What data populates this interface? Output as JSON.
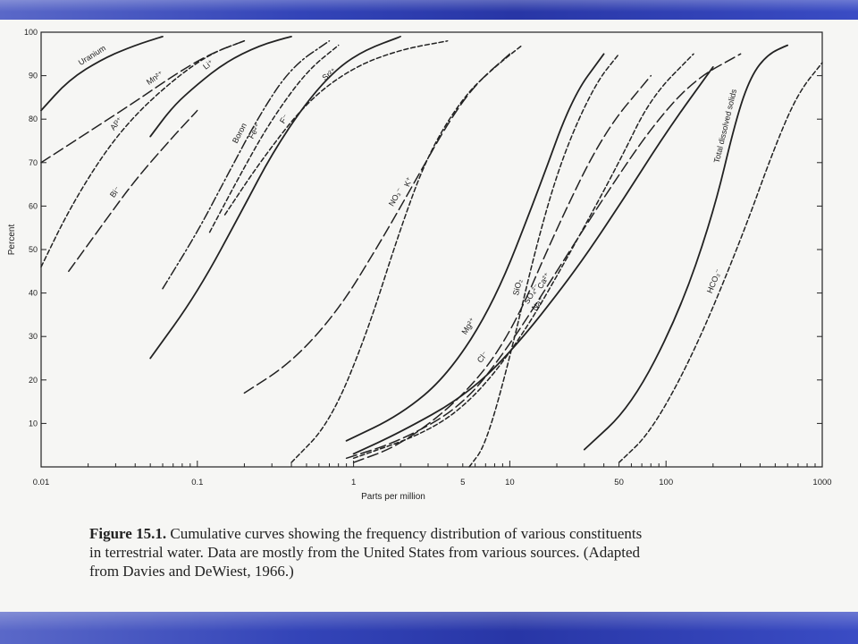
{
  "caption": {
    "figure_label": "Figure 15.1.",
    "line1": "Cumulative curves showing the frequency distribution of various constituents",
    "line2": "in terrestrial water. Data are mostly from the United States from various sources. (Adapted",
    "line3": "from Davies and DeWiest, 1966.)"
  },
  "colors": {
    "band": "#2f3eae",
    "ink": "#222222",
    "paper": "#f6f6f4"
  },
  "chart_data": {
    "type": "line",
    "xlabel": "Parts per million",
    "ylabel": "Percent",
    "x_scale": "log",
    "xlim": [
      0.01,
      1000
    ],
    "ylim": [
      0,
      100
    ],
    "x_ticks": [
      {
        "value": 0.01,
        "label": "0.01"
      },
      {
        "value": 0.1,
        "label": "0.1"
      },
      {
        "value": 1,
        "label": "1"
      },
      {
        "value": 5,
        "label": "5"
      },
      {
        "value": 10,
        "label": "10"
      },
      {
        "value": 50,
        "label": "50"
      },
      {
        "value": 100,
        "label": "100"
      },
      {
        "value": 1000,
        "label": "1000"
      }
    ],
    "y_ticks": [
      {
        "value": 10,
        "label": "10"
      },
      {
        "value": 20,
        "label": "20"
      },
      {
        "value": 30,
        "label": "30"
      },
      {
        "value": 40,
        "label": "40"
      },
      {
        "value": 50,
        "label": "50"
      },
      {
        "value": 60,
        "label": "60"
      },
      {
        "value": 70,
        "label": "70"
      },
      {
        "value": 80,
        "label": "80"
      },
      {
        "value": 90,
        "label": "90"
      },
      {
        "value": 100,
        "label": "100"
      }
    ],
    "series": [
      {
        "name": "Uranium",
        "style": "solid",
        "x": [
          0.01,
          0.015,
          0.025,
          0.04,
          0.06
        ],
        "y": [
          82,
          89,
          94,
          97,
          99
        ]
      },
      {
        "name": "Mn²⁺",
        "style": "longdash",
        "x": [
          0.01,
          0.02,
          0.04,
          0.07,
          0.12,
          0.2
        ],
        "y": [
          70,
          77,
          84,
          90,
          95,
          98
        ]
      },
      {
        "name": "Al³⁺",
        "style": "dash",
        "x": [
          0.01,
          0.015,
          0.025,
          0.04,
          0.07,
          0.12,
          0.2
        ],
        "y": [
          46,
          59,
          72,
          81,
          89,
          95,
          98
        ]
      },
      {
        "name": "Li⁺",
        "style": "solid",
        "x": [
          0.05,
          0.07,
          0.1,
          0.15,
          0.25,
          0.4
        ],
        "y": [
          76,
          83,
          88,
          93,
          97,
          99
        ]
      },
      {
        "name": "Bi⁻",
        "style": "longdash",
        "x": [
          0.015,
          0.025,
          0.04,
          0.07,
          0.1
        ],
        "y": [
          45,
          56,
          66,
          76,
          82
        ]
      },
      {
        "name": "Boron",
        "style": "dashdot",
        "x": [
          0.06,
          0.1,
          0.15,
          0.25,
          0.4,
          0.7
        ],
        "y": [
          41,
          54,
          66,
          81,
          92,
          98
        ]
      },
      {
        "name": "Fe²⁺",
        "style": "dash",
        "x": [
          0.12,
          0.2,
          0.3,
          0.5,
          0.8
        ],
        "y": [
          54,
          69,
          80,
          91,
          97
        ]
      },
      {
        "name": "Sr²⁺",
        "style": "dash",
        "x": [
          0.15,
          0.25,
          0.5,
          1,
          2,
          4
        ],
        "y": [
          58,
          70,
          84,
          92,
          96,
          98
        ]
      },
      {
        "name": "F⁻",
        "style": "solid",
        "x": [
          0.05,
          0.1,
          0.2,
          0.3,
          0.5,
          0.8,
          1.2,
          2
        ],
        "y": [
          25,
          40,
          60,
          72,
          84,
          92,
          96,
          99
        ]
      },
      {
        "name": "NO₃⁻",
        "style": "longdash",
        "x": [
          0.2,
          0.4,
          0.8,
          1.5,
          2.5,
          4,
          6,
          10
        ],
        "y": [
          17,
          24,
          36,
          52,
          66,
          79,
          88,
          95
        ]
      },
      {
        "name": "K⁺",
        "style": "dash",
        "x": [
          0.4,
          0.7,
          1.2,
          2,
          3,
          5,
          8,
          12
        ],
        "y": [
          1,
          10,
          30,
          55,
          72,
          85,
          92,
          97
        ]
      },
      {
        "name": "Mg²⁺",
        "style": "solid",
        "x": [
          0.9,
          2,
          4,
          8,
          15,
          25,
          40
        ],
        "y": [
          6,
          12,
          21,
          38,
          63,
          85,
          95
        ]
      },
      {
        "name": "SO₄²⁻",
        "style": "longdash",
        "x": [
          0.9,
          2,
          5,
          10,
          20,
          40,
          80,
          150,
          300
        ],
        "y": [
          2,
          6,
          14,
          28,
          45,
          62,
          78,
          89,
          95
        ]
      },
      {
        "name": "SiO₂",
        "style": "dash",
        "x": [
          5.5,
          7,
          10,
          15,
          22,
          35,
          50
        ],
        "y": [
          0,
          5,
          25,
          52,
          72,
          88,
          95
        ]
      },
      {
        "name": "Na⁺",
        "style": "solid",
        "x": [
          1,
          2,
          5,
          10,
          25,
          50,
          100,
          200
        ],
        "y": [
          3,
          8,
          16,
          26,
          44,
          60,
          77,
          92
        ]
      },
      {
        "name": "Cl⁻",
        "style": "longdash",
        "x": [
          1,
          2,
          5,
          10,
          20,
          40,
          80
        ],
        "y": [
          1,
          5,
          16,
          30,
          55,
          77,
          90
        ]
      },
      {
        "name": "Ca²⁺",
        "style": "dash",
        "x": [
          1,
          3,
          6,
          12,
          25,
          50,
          80,
          150
        ],
        "y": [
          2,
          8,
          16,
          30,
          50,
          70,
          85,
          95
        ]
      },
      {
        "name": "Total dissolved solids",
        "style": "solid",
        "x": [
          30,
          60,
          120,
          200,
          280,
          350,
          450,
          600
        ],
        "y": [
          4,
          14,
          35,
          58,
          80,
          90,
          95,
          97
        ]
      },
      {
        "name": "HCO₃⁻",
        "style": "dash",
        "x": [
          50,
          80,
          150,
          300,
          500,
          700,
          1000
        ],
        "y": [
          1,
          8,
          26,
          52,
          74,
          86,
          93
        ]
      }
    ]
  }
}
